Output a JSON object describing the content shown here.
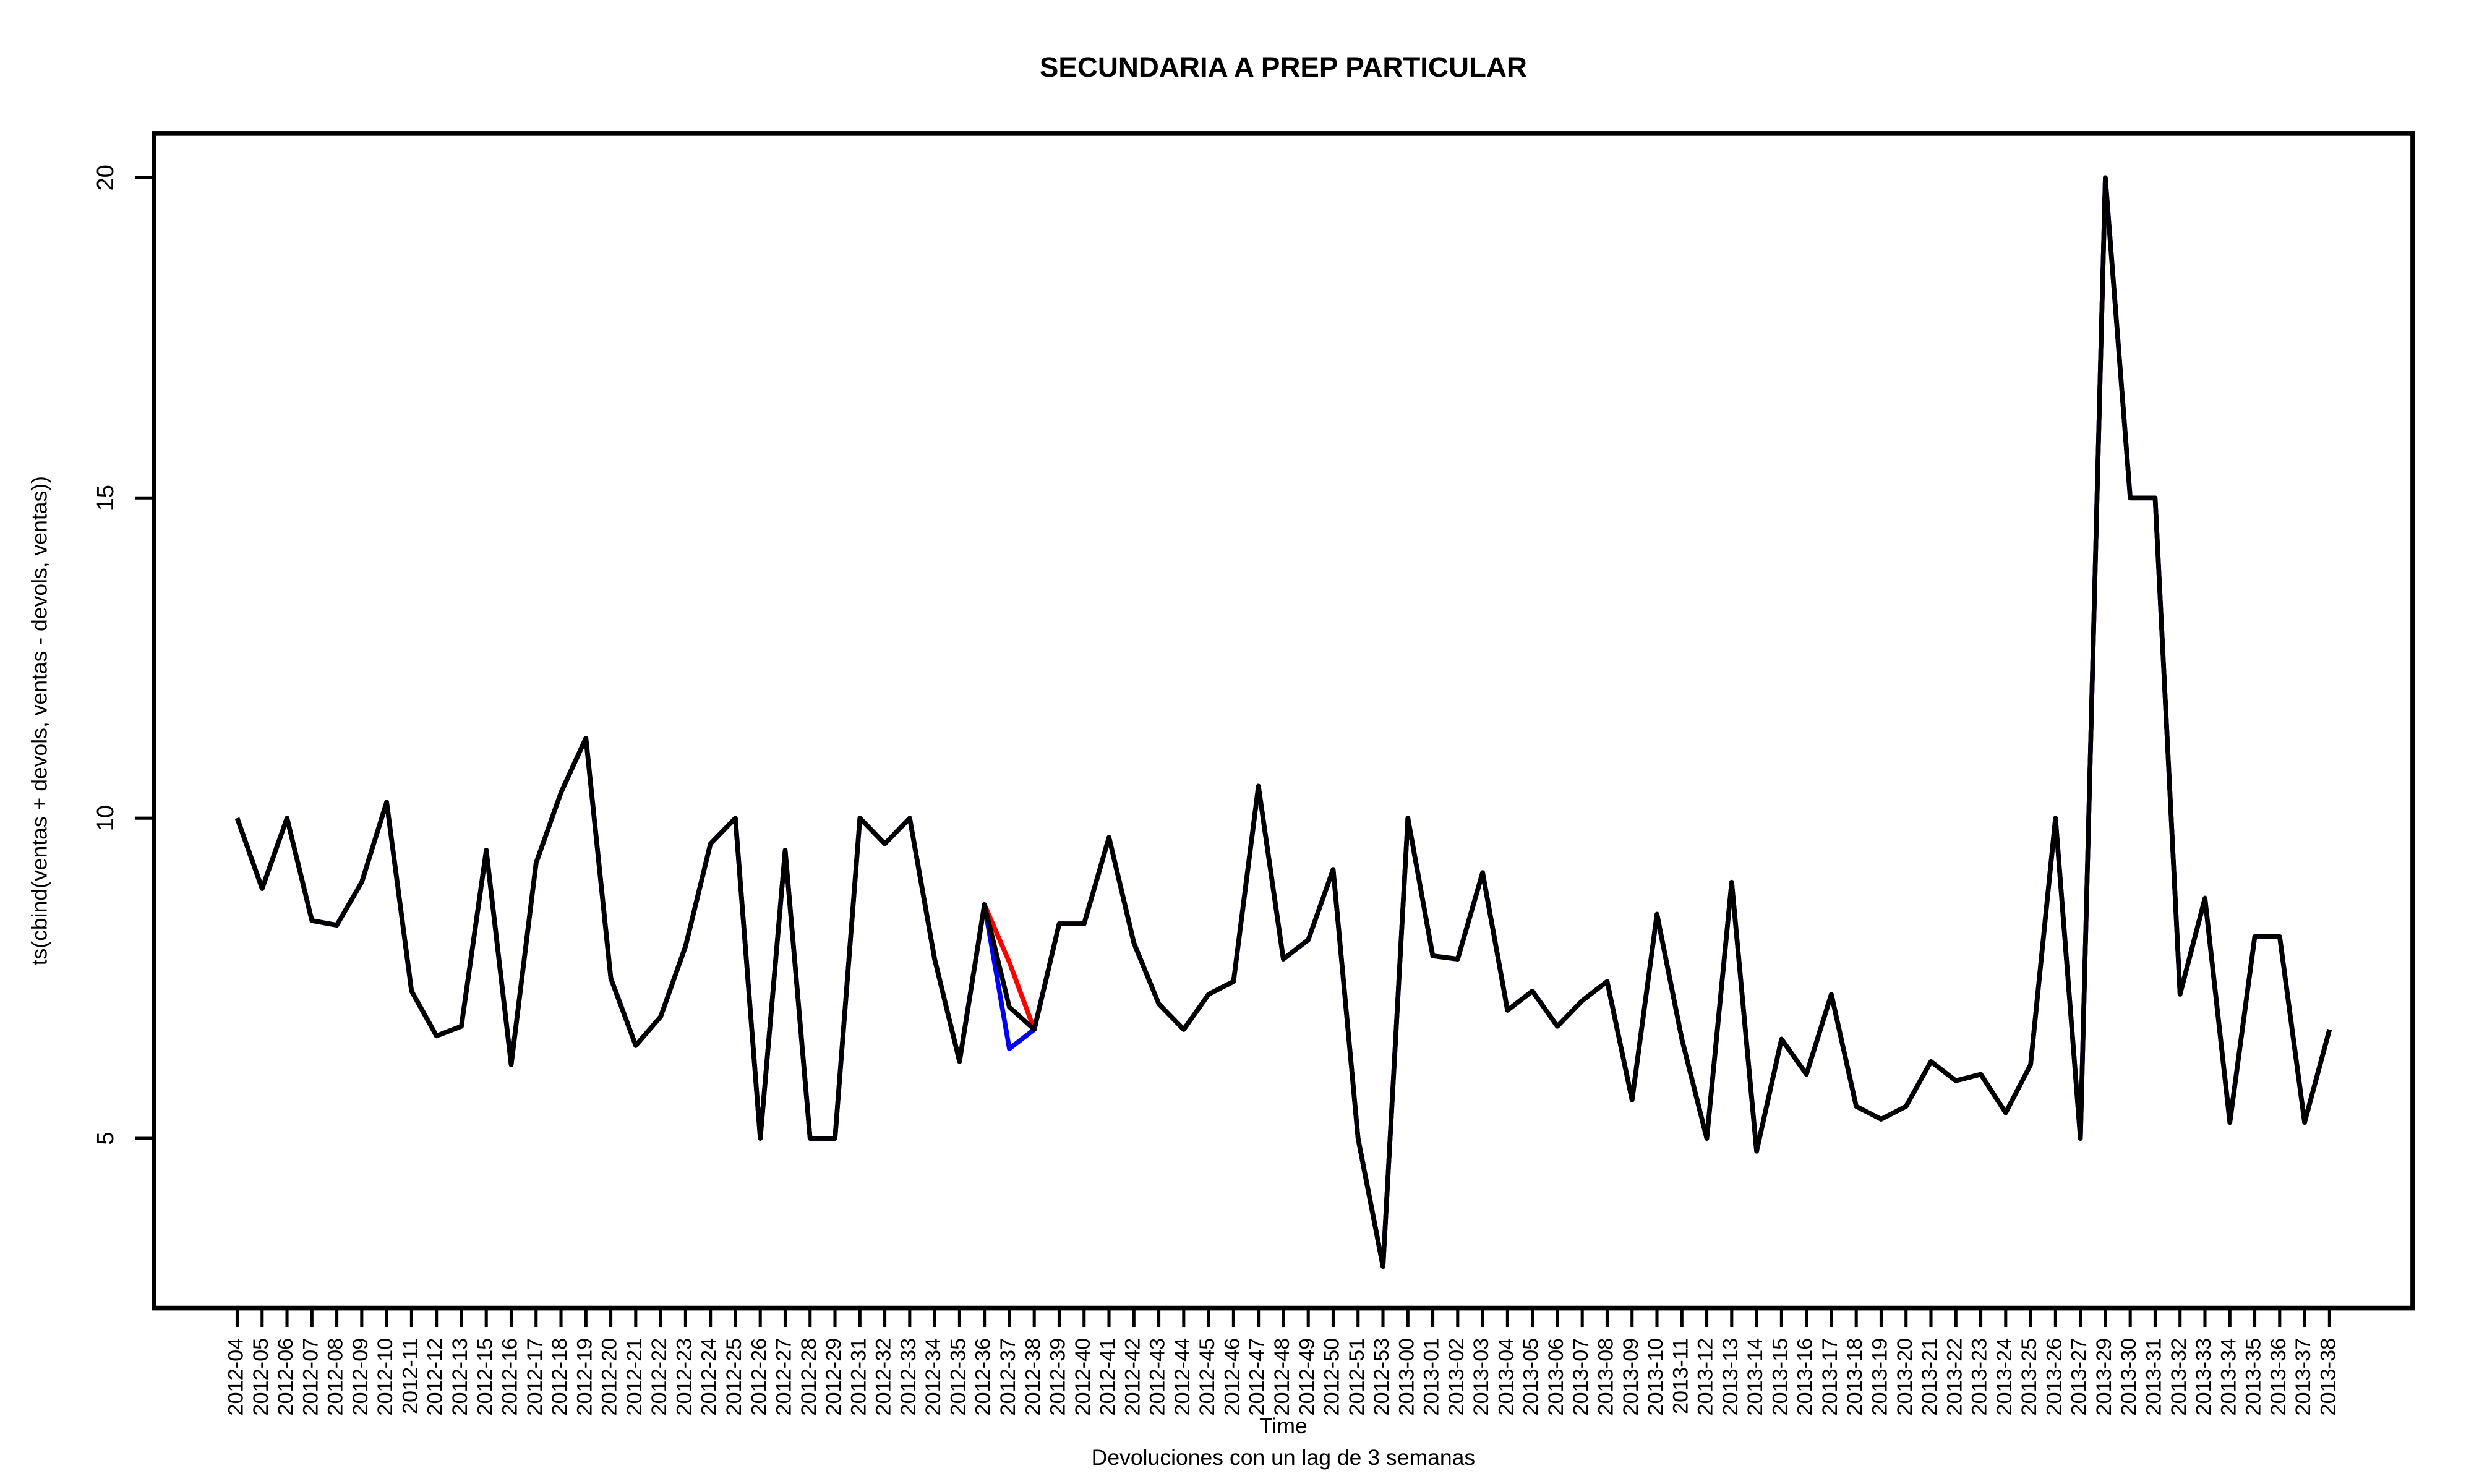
{
  "chart_data": {
    "type": "line",
    "title": "SECUNDARIA A PREP PARTICULAR",
    "subtitle": "Devoluciones con un lag de 3 semanas",
    "xlabel": "Time",
    "ylabel": "ts(cbind(ventas + devols, ventas - devols, ventas))",
    "categories": [
      "2012-04",
      "2012-05",
      "2012-06",
      "2012-07",
      "2012-08",
      "2012-09",
      "2012-10",
      "2012-11",
      "2012-12",
      "2012-13",
      "2012-15",
      "2012-16",
      "2012-17",
      "2012-18",
      "2012-19",
      "2012-20",
      "2012-21",
      "2012-22",
      "2012-23",
      "2012-24",
      "2012-25",
      "2012-26",
      "2012-27",
      "2012-28",
      "2012-29",
      "2012-31",
      "2012-32",
      "2012-33",
      "2012-34",
      "2012-35",
      "2012-36",
      "2012-37",
      "2012-38",
      "2012-39",
      "2012-40",
      "2012-41",
      "2012-42",
      "2012-43",
      "2012-44",
      "2012-45",
      "2012-46",
      "2012-47",
      "2012-48",
      "2012-49",
      "2012-50",
      "2012-51",
      "2012-53",
      "2013-00",
      "2013-01",
      "2013-02",
      "2013-03",
      "2013-04",
      "2013-05",
      "2013-06",
      "2013-07",
      "2013-08",
      "2013-09",
      "2013-10",
      "2013-11",
      "2013-12",
      "2013-13",
      "2013-14",
      "2013-15",
      "2013-16",
      "2013-17",
      "2013-18",
      "2013-19",
      "2013-20",
      "2013-21",
      "2013-22",
      "2013-23",
      "2013-24",
      "2013-25",
      "2013-26",
      "2013-27",
      "2013-29",
      "2013-30",
      "2013-31",
      "2013-32",
      "2013-33",
      "2013-34",
      "2013-35",
      "2013-36",
      "2013-37",
      "2013-38"
    ],
    "series": [
      {
        "color": "#ff0000",
        "values": [
          10,
          8.9,
          10,
          8.4,
          8.33,
          9.0,
          10.25,
          7.3,
          6.6,
          6.75,
          9.5,
          6.15,
          9.3,
          10.4,
          11.25,
          7.5,
          6.45,
          6.9,
          8.0,
          9.6,
          10,
          5,
          9.5,
          5,
          5,
          10,
          9.6,
          10,
          7.8,
          6.2,
          8.65,
          7.75,
          6.7,
          8.35,
          8.35,
          9.7,
          8.05,
          7.1,
          6.7,
          7.25,
          7.45,
          10.5,
          7.8,
          8.1,
          9.2,
          5,
          3,
          10,
          7.85,
          7.8,
          9.15,
          7.0,
          7.3,
          6.75,
          7.15,
          7.45,
          5.6,
          8.5,
          6.55,
          5,
          9.0,
          4.8,
          6.55,
          6.0,
          7.25,
          5.5,
          5.3,
          5.5,
          6.2,
          5.9,
          6.0,
          5.4,
          6.15,
          10,
          5,
          20,
          15,
          15,
          7.25,
          8.75,
          5.25,
          8.15,
          8.15,
          5.25,
          6.7
        ]
      },
      {
        "color": "#0000ff",
        "values": [
          10,
          8.9,
          10,
          8.4,
          8.33,
          9.0,
          10.25,
          7.3,
          6.6,
          6.75,
          9.5,
          6.15,
          9.3,
          10.4,
          11.25,
          7.5,
          6.45,
          6.9,
          8.0,
          9.6,
          10,
          5,
          9.5,
          5,
          5,
          10,
          9.6,
          10,
          7.8,
          6.2,
          8.65,
          6.4,
          6.7,
          8.35,
          8.35,
          9.7,
          8.05,
          7.1,
          6.7,
          7.25,
          7.45,
          10.5,
          7.8,
          8.1,
          9.2,
          5,
          3,
          10,
          7.85,
          7.8,
          9.15,
          7.0,
          7.3,
          6.75,
          7.15,
          7.45,
          5.6,
          8.5,
          6.55,
          5,
          9.0,
          4.8,
          6.55,
          6.0,
          7.25,
          5.5,
          5.3,
          5.5,
          6.2,
          5.9,
          6.0,
          5.4,
          6.15,
          10,
          5,
          20,
          15,
          15,
          7.25,
          8.75,
          5.25,
          8.15,
          8.15,
          5.25,
          6.7
        ]
      },
      {
        "color": "#000000",
        "values": [
          10,
          8.9,
          10,
          8.4,
          8.33,
          9.0,
          10.25,
          7.3,
          6.6,
          6.75,
          9.5,
          6.15,
          9.3,
          10.4,
          11.25,
          7.5,
          6.45,
          6.9,
          8.0,
          9.6,
          10,
          5,
          9.5,
          5,
          5,
          10,
          9.6,
          10,
          7.8,
          6.2,
          8.65,
          7.05,
          6.7,
          8.35,
          8.35,
          9.7,
          8.05,
          7.1,
          6.7,
          7.25,
          7.45,
          10.5,
          7.8,
          8.1,
          9.2,
          5,
          3,
          10,
          7.85,
          7.8,
          9.15,
          7.0,
          7.3,
          6.75,
          7.15,
          7.45,
          5.6,
          8.5,
          6.55,
          5,
          9.0,
          4.8,
          6.55,
          6.0,
          7.25,
          5.5,
          5.3,
          5.5,
          6.2,
          5.9,
          6.0,
          5.4,
          6.15,
          10,
          5,
          20,
          15,
          15,
          7.25,
          8.75,
          5.25,
          8.15,
          8.15,
          5.25,
          6.7
        ]
      }
    ],
    "ylim": [
      2.35,
      20.69
    ],
    "yticks": [
      5,
      10,
      15,
      20
    ]
  }
}
